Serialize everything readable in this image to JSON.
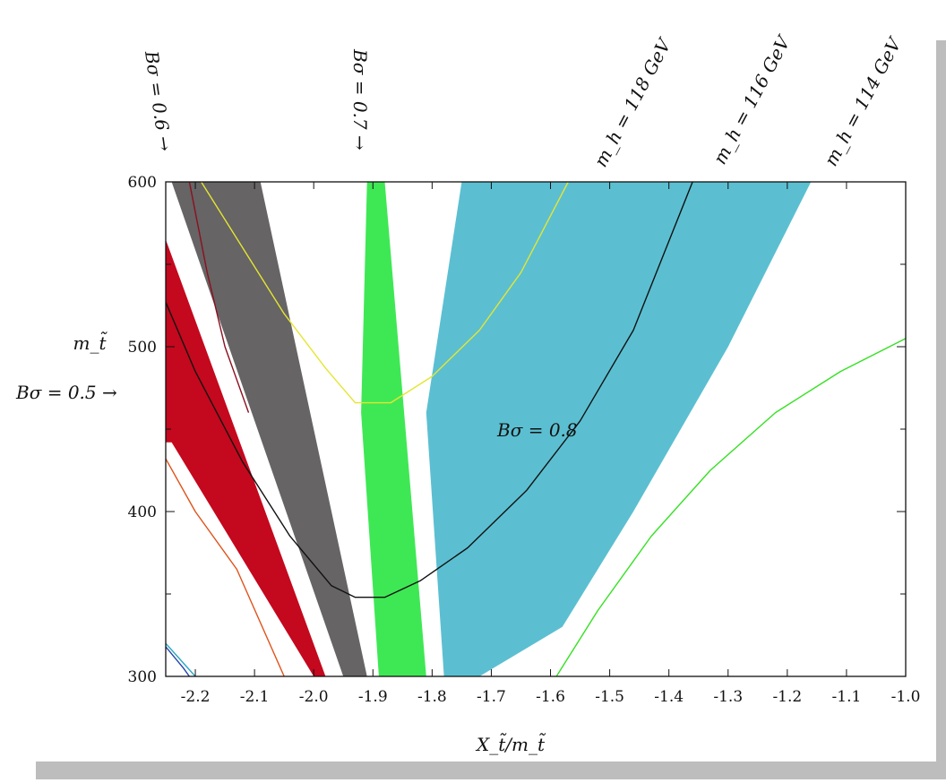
{
  "chart_data": {
    "type": "area",
    "title": "",
    "xlabel": "X_t̃/m_t̃",
    "ylabel": "m_t̃",
    "xlim": [
      -2.25,
      -1.0
    ],
    "ylim": [
      300,
      600
    ],
    "grid": false,
    "x_ticks": [
      -2.2,
      -2.1,
      -2.0,
      -1.9,
      -1.8,
      -1.7,
      -1.6,
      -1.5,
      -1.4,
      -1.3,
      -1.2,
      -1.1,
      -1.0
    ],
    "x_tick_labels": [
      "-2.2",
      "-2.1",
      "-2.0",
      "-1.9",
      "-1.8",
      "-1.7",
      "-1.6",
      "-1.5",
      "-1.4",
      "-1.3",
      "-1.2",
      "-1.1",
      "-1.0"
    ],
    "y_ticks": [
      300,
      400,
      500,
      600
    ],
    "y_tick_labels": [
      "300",
      "400",
      "500",
      "600"
    ],
    "bands": [
      {
        "key": "red",
        "color": "#c4081e",
        "upper": [
          [
            -2.25,
            565
          ],
          [
            -1.98,
            300
          ]
        ],
        "lower": [
          [
            -2.25,
            442
          ],
          [
            -2.24,
            442
          ],
          [
            -2.0,
            300
          ]
        ]
      },
      {
        "key": "gray",
        "color": "#666464",
        "upper": [
          [
            -2.09,
            600
          ],
          [
            -1.91,
            300
          ]
        ],
        "lower": [
          [
            -2.25,
            600
          ],
          [
            -2.24,
            600
          ],
          [
            -1.95,
            300
          ]
        ]
      },
      {
        "key": "green",
        "color": "#3ee854",
        "upper": [
          [
            -1.88,
            600
          ],
          [
            -1.81,
            300
          ]
        ],
        "lower": [
          [
            -1.91,
            600
          ],
          [
            -1.92,
            460
          ],
          [
            -1.89,
            300
          ]
        ]
      },
      {
        "key": "blue",
        "color": "#5bbfd1",
        "upper": [
          [
            -1.16,
            600
          ],
          [
            -1.3,
            500
          ],
          [
            -1.46,
            400
          ],
          [
            -1.58,
            330
          ],
          [
            -1.72,
            300
          ]
        ],
        "lower": [
          [
            -1.75,
            600
          ],
          [
            -1.81,
            460
          ],
          [
            -1.78,
            300
          ]
        ]
      }
    ],
    "curves": [
      {
        "key": "yellow",
        "color": "#e4e632",
        "points": [
          [
            -2.19,
            600
          ],
          [
            -2.12,
            560
          ],
          [
            -2.05,
            520
          ],
          [
            -1.98,
            487
          ],
          [
            -1.93,
            466
          ],
          [
            -1.87,
            466
          ],
          [
            -1.8,
            482
          ],
          [
            -1.72,
            510
          ],
          [
            -1.65,
            545
          ],
          [
            -1.57,
            600
          ]
        ]
      },
      {
        "key": "black",
        "color": "#111111",
        "points": [
          [
            -2.25,
            527
          ],
          [
            -2.2,
            485
          ],
          [
            -2.12,
            430
          ],
          [
            -2.04,
            385
          ],
          [
            -1.97,
            355
          ],
          [
            -1.93,
            348
          ],
          [
            -1.88,
            348
          ],
          [
            -1.82,
            358
          ],
          [
            -1.74,
            378
          ],
          [
            -1.64,
            413
          ],
          [
            -1.55,
            455
          ],
          [
            -1.46,
            510
          ],
          [
            -1.36,
            600
          ]
        ]
      },
      {
        "key": "darkred",
        "color": "#8b1020",
        "points": [
          [
            -2.21,
            600
          ],
          [
            -2.18,
            545
          ],
          [
            -2.15,
            500
          ],
          [
            -2.11,
            460
          ]
        ]
      },
      {
        "key": "orange",
        "color": "#e0521a",
        "points": [
          [
            -2.25,
            432
          ],
          [
            -2.2,
            400
          ],
          [
            -2.13,
            365
          ],
          [
            -2.05,
            300
          ]
        ]
      },
      {
        "key": "lightgreen",
        "color": "#36e024",
        "points": [
          [
            -1.59,
            300
          ],
          [
            -1.52,
            340
          ],
          [
            -1.43,
            385
          ],
          [
            -1.33,
            425
          ],
          [
            -1.22,
            460
          ],
          [
            -1.11,
            485
          ],
          [
            -1.0,
            505
          ]
        ]
      },
      {
        "key": "cyan-corner",
        "color": "#2aa7c4",
        "points": [
          [
            -2.25,
            320
          ],
          [
            -2.23,
            312
          ],
          [
            -2.2,
            300
          ]
        ]
      },
      {
        "key": "blue-corner",
        "color": "#2244aa",
        "points": [
          [
            -2.25,
            318
          ],
          [
            -2.22,
            305
          ],
          [
            -2.21,
            300
          ]
        ]
      }
    ],
    "annotations": {
      "b05": "Bσ = 0.5 →",
      "b06": "Bσ = 0.6 →",
      "b07": "Bσ = 0.7 →",
      "b08": "Bσ = 0.8",
      "mh118": "m_h = 118 GeV",
      "mh116": "m_h = 116 GeV",
      "mh114": "m_h = 114 GeV"
    }
  }
}
